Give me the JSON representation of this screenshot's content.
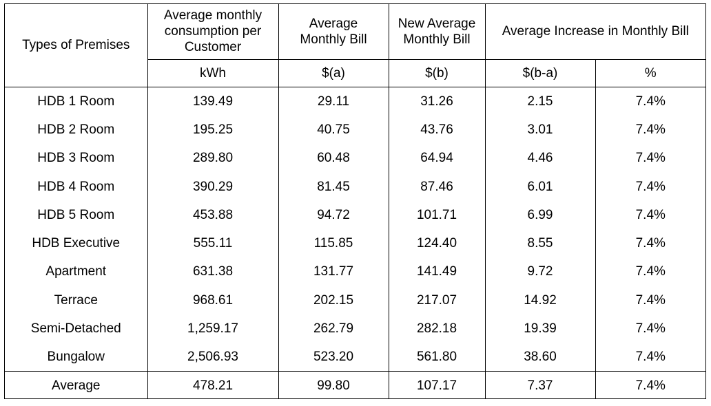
{
  "headers": {
    "premises": "Types of Premises",
    "consumption": "Average monthly consumption per Customer",
    "bill": "Average Monthly Bill",
    "new_bill": "New Average Monthly Bill",
    "increase": "Average Increase in Monthly Bill",
    "unit_kwh": "kWh",
    "unit_a": "$(a)",
    "unit_b": "$(b)",
    "unit_ba": "$(b-a)",
    "unit_pct": "%"
  },
  "rows": [
    {
      "type": "HDB 1 Room",
      "kwh": "139.49",
      "a": "29.11",
      "b": "31.26",
      "ba": "2.15",
      "pct": "7.4%"
    },
    {
      "type": "HDB 2 Room",
      "kwh": "195.25",
      "a": "40.75",
      "b": "43.76",
      "ba": "3.01",
      "pct": "7.4%"
    },
    {
      "type": "HDB 3 Room",
      "kwh": "289.80",
      "a": "60.48",
      "b": "64.94",
      "ba": "4.46",
      "pct": "7.4%"
    },
    {
      "type": "HDB 4 Room",
      "kwh": "390.29",
      "a": "81.45",
      "b": "87.46",
      "ba": "6.01",
      "pct": "7.4%"
    },
    {
      "type": "HDB 5 Room",
      "kwh": "453.88",
      "a": "94.72",
      "b": "101.71",
      "ba": "6.99",
      "pct": "7.4%"
    },
    {
      "type": "HDB Executive",
      "kwh": "555.11",
      "a": "115.85",
      "b": "124.40",
      "ba": "8.55",
      "pct": "7.4%"
    },
    {
      "type": "Apartment",
      "kwh": "631.38",
      "a": "131.77",
      "b": "141.49",
      "ba": "9.72",
      "pct": "7.4%"
    },
    {
      "type": "Terrace",
      "kwh": "968.61",
      "a": "202.15",
      "b": "217.07",
      "ba": "14.92",
      "pct": "7.4%"
    },
    {
      "type": "Semi-Detached",
      "kwh": "1,259.17",
      "a": "262.79",
      "b": "282.18",
      "ba": "19.39",
      "pct": "7.4%"
    },
    {
      "type": "Bungalow",
      "kwh": "2,506.93",
      "a": "523.20",
      "b": "561.80",
      "ba": "38.60",
      "pct": "7.4%"
    }
  ],
  "average": {
    "type": "Average",
    "kwh": "478.21",
    "a": "99.80",
    "b": "107.17",
    "ba": "7.37",
    "pct": "7.4%"
  }
}
